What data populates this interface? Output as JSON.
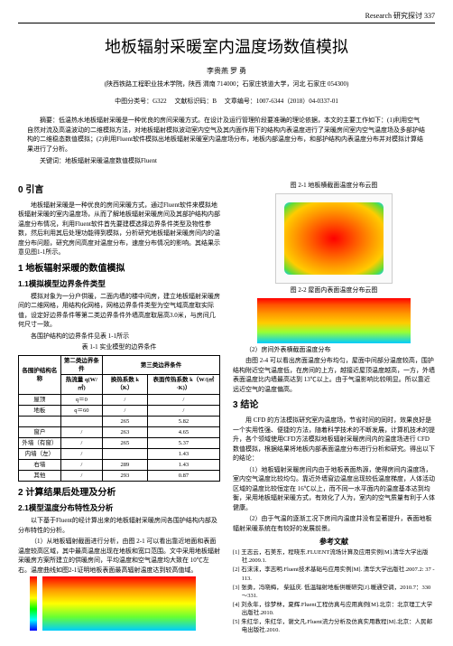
{
  "header": {
    "section": "Research 研究探讨",
    "page": "337"
  },
  "title": "地板辐射采暖室内温度场数值模拟",
  "authors": "李贵燕 罗 勇",
  "affil": "(陕西铁路工程职业技术学院，陕西 渭南 714000；石家庄铁道大学，河北 石家庄 054300)",
  "meta": {
    "classnum": "中图分类号：G322",
    "docmark": "文献标识码：B",
    "articleid": "文章编号：1007-6344（2018）04-0337-01"
  },
  "abstract": "摘要：低温热水地板辐射采暖是一种优良的房间采暖方式。在设计及运行管理阶段要准确的理论依据，本文的主要工作如下：(1)利用空气自然对流及高温波动的二维模拟方法，对地板辐射模拟波动室内空气及其内面作用下的结构内表温度进行了采暖房间室内空气温度场及多部护结构的二维稳态数值模拟；(2)利用Fluent软件模拟出地板辐射采暖室内温度场分布，地板内部温度分布，和部护结构内表温度分布并对模拟计算结果进行了分析。",
  "keywords": "关键词：地板辐射采暖温度数值模拟Fluent",
  "s0": {
    "title": "0 引言",
    "p1": "地板辐射采暖是一种优良的房间采暖方式，通过Fluent软件来模拟地板辐射采暖的室内温度场，从而了解地板辐射采暖房间及其部护结构内部温度分布情况，利用Fluent软件首先要建模选择边界条件类型及物性参数，然后利用其后处理功能得到模拟，分析研究地板辐射采暖房间内的温度分布问题，研究房间高度对温度分布，速度分布情况的影响。其结果示意见图1-1所示。"
  },
  "s1": {
    "title": "1 地板辐射采暖的数值模拟",
    "s11": "1.1模拟模型边界条件类型",
    "p1": "模拟对象为一分户供暖，二面内墙的楼中间房，建立地板辐射采暖房间的二维网格，用结构化网格，网格边界条件类型为空气域高度取实际值，设定好边界条件等第二类边界条件外墙高度取层高3.0米，与房间几何尺寸一致。",
    "p2": "各围护结构的边界条件见表 1-1所示",
    "tablecap": "表 1-1 实业模型的边界条件",
    "t": {
      "h": [
        "各围护结构名称",
        "第二类边界条件",
        "第三类边界条件",
        ""
      ],
      "h2": [
        "",
        "热流量 q(W/㎡)",
        "换热系数 k（K）",
        "表面传热系数 k（W/(㎡·K)）"
      ],
      "r": [
        [
          "屋顶",
          "q＝0",
          "/",
          "/"
        ],
        [
          "地板",
          "q＝60",
          "/",
          "/"
        ],
        [
          "",
          "",
          "265",
          "5.82"
        ],
        [
          "窗户",
          "/",
          "263",
          "4.65"
        ],
        [
          "外墙（有窗）",
          "/",
          "265",
          "5.37"
        ],
        [
          "内墙（左）",
          "/",
          "",
          "1.43"
        ],
        [
          "右墙",
          "/",
          "289",
          "1.43"
        ],
        [
          "其他",
          "/",
          "293",
          "0.87"
        ]
      ]
    }
  },
  "s2": {
    "title": "2 计算结果后处理及分析",
    "s21": "2.1模型温度分布特性及分析",
    "p1": "以下基于Fluent的经计算出来的地板辐射采暖房间各围护结构内部及分布特性的分析。",
    "p2": "（1）从地板辐射截面进行分析，由图 2-1 可以看出靠近地面和表面温度较高区域，其中最高温度出现在地板和宽口范围。文中采用地板辐射采暖房方案所建立的供暖房间，平均温度和空气温度均大致在 10℃左右。温度曲线如图2-1证明地板表面最高辐射温度达到较高值域。",
    "fig1": "图 2-1 地板横截面温度分布云图",
    "fig2": "图 2-2 屋面内表面温度分布云图",
    "p3": "（2）房间外表横截面温度分布",
    "p4": "由图 2-4 可以看出房面温度分布均匀，屋面中间部分温度较高，围护结构附近空气温度低，在房间的上方，越接近屋顶温度越高，一方，外墙表面温度比内墙最高达到 13℃以上。由于气温影响比较明显。所以靠近远近空气的温度偏高。"
  },
  "s3": {
    "title": "3 结论",
    "p1": "用 CFD 的方法模拟研究室内温度场，节省时间的同时，效果良好是一个实用性强、便捷的方法，随着科学技术的不断发展，计算机技术的提升，各个领域使用CFD方法模拟地板辐射采暖房间内的温度场进行 CFD 数值模拟，根据结果将地板内部表面温度分布进行分析和研究。得出以下的结论：",
    "p2": "（1）地板辐射采暖房间内由于地板表面热源，使得房间内温度场，室内空气温度比较均匀。靠近外墙窗边温度出现较低温度梯度，人体活动区域的温度比较恒定在 16℃以上，而不同一水平面内的温度基本达到均衡，采用地板辐射采暖方式，有效化了人为，室内的空气质量有利于人体健康。",
    "p3": "（2）由于气温的逐渐工况下房间内温度并没有显著提升，表面地板辐射采暖系统在有较好的发展前景。",
    "ref": "参考文献",
    "refs": [
      "[1] 王志云，石美东，程晓东.FLUENT流场计算及应用实例[M].清华大学出版社.2009.1.",
      "[2] 石沫沫，李志明.Fluent技术基础与应用实例[M]. 清华大学出版社.2007.2: 37 - 113.",
      "[3] 张勇，冯晓梅， 柴延庆. 低温辐射地板供暖研究[J].暖通空调，2010.7：330～331.",
      "[4] 刘永年，徐梦林，夏辉.Fluent工程仿真与应用真例[M].北京：北京理工大学出版社.2010.",
      "[5] 朱红华，朱红华，谢文凡.Fluent流力分析及仿真实用教程[M].北京：人民邮电出版社.2010."
    ]
  },
  "colors": {
    "red": "#ff0000",
    "orange": "#ff9900",
    "yellow": "#ffff00",
    "green": "#66ff33",
    "blue": "#00ccff"
  }
}
